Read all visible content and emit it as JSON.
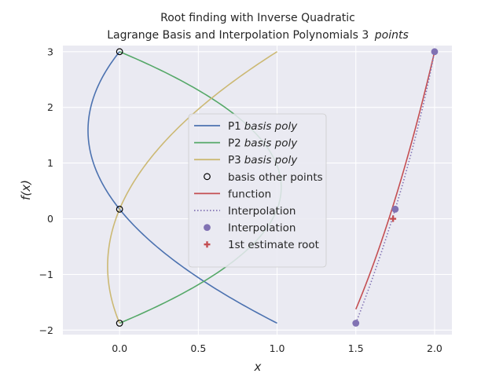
{
  "chart_data": {
    "type": "line",
    "title_line1": "Root finding with Inverse Quadratic",
    "title_line2_prefix": "Lagrange Basis and Interpolation Polynomials 3",
    "title_line2_math": "points",
    "xlabel": "x",
    "ylabel_f": "f",
    "ylabel_paren": "(x)",
    "xlim": [
      -0.36,
      2.11
    ],
    "ylim": [
      -2.08,
      3.11
    ],
    "xticks": [
      0.0,
      0.5,
      1.0,
      1.5,
      2.0
    ],
    "xtick_labels": [
      "0.0",
      "0.5",
      "1.0",
      "1.5",
      "2.0"
    ],
    "yticks": [
      -2,
      -1,
      0,
      1,
      2,
      3
    ],
    "ytick_labels": [
      "−2",
      "−1",
      "0",
      "1",
      "2",
      "3"
    ],
    "grid": true,
    "legend_position": "center",
    "interp_nodes": {
      "y": [
        -1.875,
        0.1719,
        3.0
      ],
      "x": [
        1.5,
        1.75,
        2.0
      ]
    },
    "series": [
      {
        "name": "P1",
        "name_math": "basis poly",
        "kind": "basis",
        "index": 0,
        "color": "#4c72b0"
      },
      {
        "name": "P2",
        "name_math": "basis poly",
        "kind": "basis",
        "index": 1,
        "color": "#55a868"
      },
      {
        "name": "P3",
        "name_math": "basis poly",
        "kind": "basis",
        "index": 2,
        "color": "#ccb974"
      },
      {
        "name": "basis other points",
        "kind": "basis-points",
        "color": "#000000",
        "x": [
          0,
          0,
          0
        ],
        "y": [
          -1.875,
          0.1719,
          3.0
        ]
      },
      {
        "name": "function",
        "kind": "function",
        "color": "#c44e52",
        "x_range": [
          1.5,
          2.0
        ]
      },
      {
        "name": "Interpolation",
        "kind": "interp-line",
        "color": "#8172b3"
      },
      {
        "name": "Interpolation",
        "kind": "interp-points",
        "color": "#8172b3",
        "x": [
          1.5,
          1.75,
          2.0
        ],
        "y": [
          -1.875,
          0.1719,
          3.0
        ]
      },
      {
        "name": "1st estimate root",
        "kind": "estimate",
        "color": "#c44e52",
        "x": [
          1.7363
        ],
        "y": [
          0.0
        ]
      }
    ],
    "colors": {
      "axes_bg": "#eaeaf2",
      "grid": "#ffffff"
    }
  }
}
